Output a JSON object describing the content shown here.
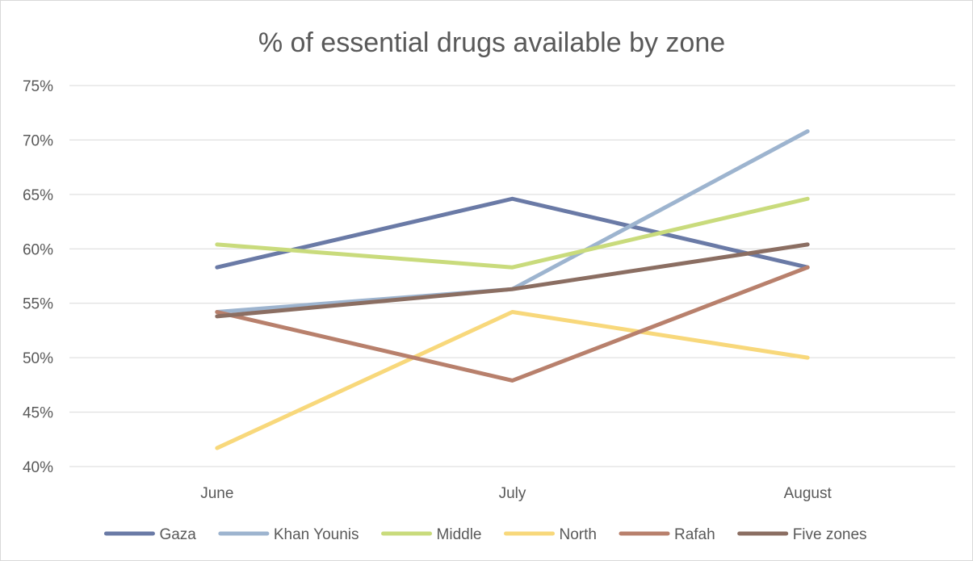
{
  "chart_data": {
    "type": "line",
    "title": "% of essential drugs available by zone",
    "xlabel": "",
    "ylabel": "",
    "categories": [
      "June",
      "July",
      "August"
    ],
    "ylim": [
      0.4,
      0.75
    ],
    "yticks": [
      {
        "value": 0.75,
        "label": "75%"
      },
      {
        "value": 0.7,
        "label": "70%"
      },
      {
        "value": 0.65,
        "label": "65%"
      },
      {
        "value": 0.6,
        "label": "60%"
      },
      {
        "value": 0.55,
        "label": "55%"
      },
      {
        "value": 0.5,
        "label": "50%"
      },
      {
        "value": 0.45,
        "label": "45%"
      },
      {
        "value": 0.4,
        "label": "40%"
      }
    ],
    "grid": true,
    "legend_position": "bottom",
    "series": [
      {
        "name": "Gaza",
        "color": "#6a7aa6",
        "values": [
          0.583,
          0.646,
          0.583
        ]
      },
      {
        "name": "Khan Younis",
        "color": "#9db4cf",
        "values": [
          0.542,
          0.563,
          0.708
        ]
      },
      {
        "name": "Middle",
        "color": "#c9db7c",
        "values": [
          0.604,
          0.583,
          0.646
        ]
      },
      {
        "name": "North",
        "color": "#f8d87b",
        "values": [
          0.417,
          0.542,
          0.5
        ]
      },
      {
        "name": "Rafah",
        "color": "#b8806c",
        "values": [
          0.542,
          0.479,
          0.583
        ]
      },
      {
        "name": "Five zones",
        "color": "#8b6e62",
        "values": [
          0.538,
          0.563,
          0.604
        ]
      }
    ]
  }
}
